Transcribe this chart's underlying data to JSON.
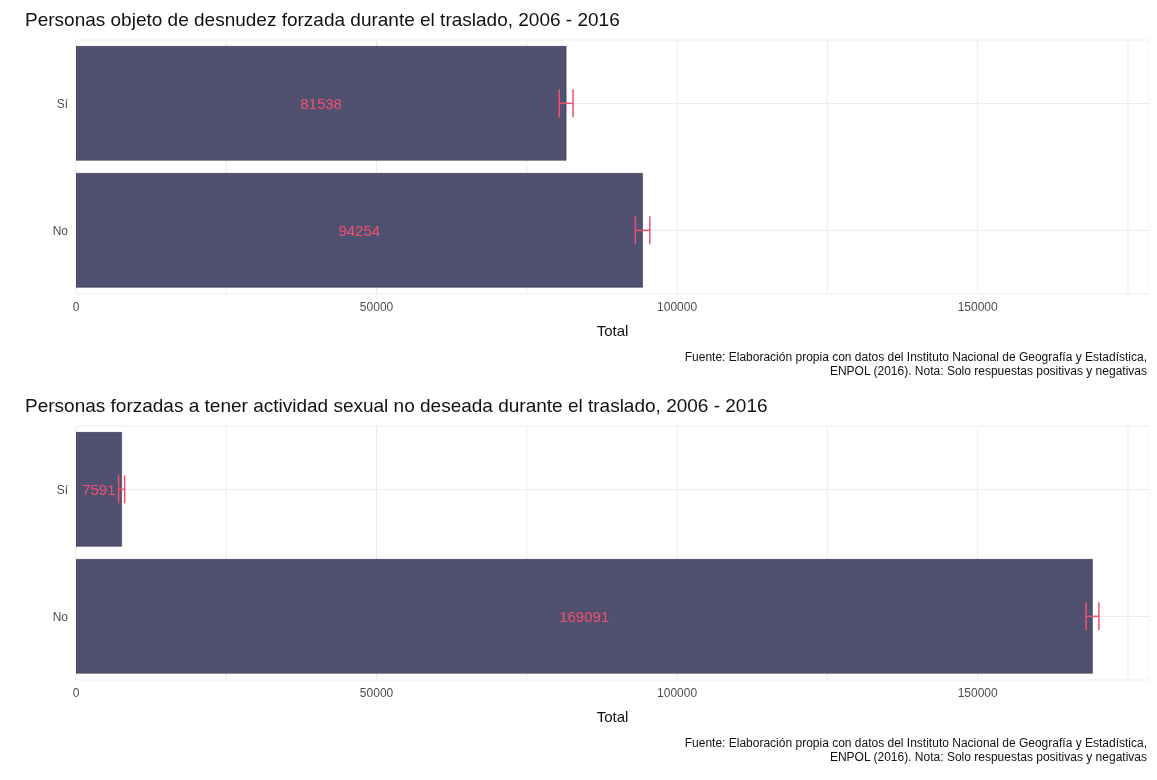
{
  "chart_data": [
    {
      "type": "bar",
      "orientation": "horizontal",
      "title": "Personas objeto de desnudez forzada durante el traslado, 2006 - 2016",
      "xlabel": "Total",
      "categories": [
        "Sí",
        "No"
      ],
      "values": [
        81538,
        94254
      ],
      "errors": [
        1150,
        1200
      ],
      "color": "#505170",
      "data_labels": true,
      "xlim": [
        0,
        178500
      ],
      "xticks": [
        0,
        {
          "value": 25000,
          "label": null
        },
        50000,
        {
          "value": 75000,
          "label": null
        },
        100000,
        {
          "value": 125000,
          "label": null
        },
        150000,
        {
          "value": 175000,
          "label": null
        }
      ],
      "grid": true,
      "legend": false,
      "annotations": [
        "Fuente: Elaboración propia con datos del Instituto Nacional de Geografía y Estadística,\nENPOL (2016). Nota: Solo respuestas positivas y negativas"
      ]
    },
    {
      "type": "bar",
      "orientation": "horizontal",
      "title": "Personas forzadas a tener actividad sexual no deseada durante el traslado, 2006 - 2016",
      "xlabel": "Total",
      "categories": [
        "Sí",
        "No"
      ],
      "values": [
        7591,
        169091
      ],
      "errors": [
        500,
        1070
      ],
      "color": "#505170",
      "data_labels": true,
      "xlim": [
        0,
        178500
      ],
      "xticks": [
        0,
        {
          "value": 25000,
          "label": null
        },
        50000,
        {
          "value": 75000,
          "label": null
        },
        100000,
        {
          "value": 125000,
          "label": null
        },
        150000,
        {
          "value": 175000,
          "label": null
        }
      ],
      "grid": true,
      "legend": false,
      "annotations": [
        "Fuente: Elaboración propia con datos del Instituto Nacional de Geografía y Estadística,\nENPOL (2016). Nota: Solo respuestas positivas y negativas"
      ]
    }
  ]
}
